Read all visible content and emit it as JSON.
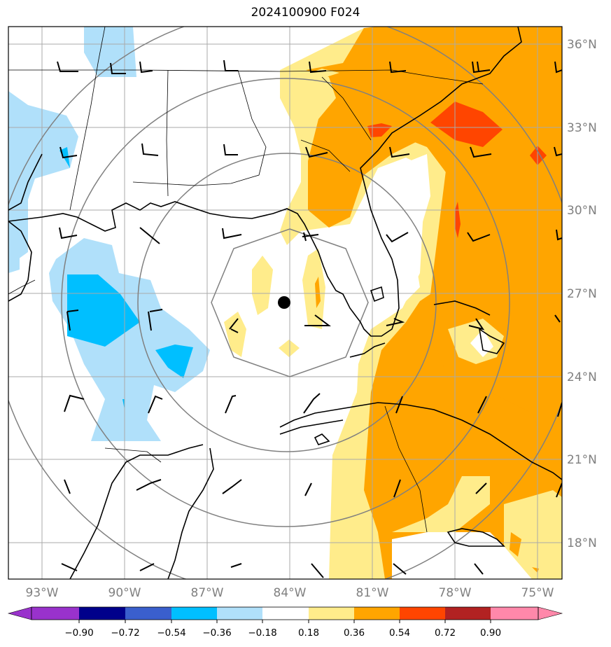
{
  "title": "2024100900 F024",
  "map": {
    "lon_labels": [
      "93°W",
      "90°W",
      "87°W",
      "84°W",
      "81°W",
      "78°W",
      "75°W"
    ],
    "lat_labels": [
      "36°N",
      "33°N",
      "30°N",
      "27°N",
      "24°N",
      "21°N",
      "18°N"
    ],
    "center_marker": "storm-center-dot"
  },
  "colorbar": {
    "ticks": [
      "−0.90",
      "−0.72",
      "−0.54",
      "−0.36",
      "−0.18",
      "0.18",
      "0.36",
      "0.54",
      "0.72",
      "0.90"
    ],
    "colors": [
      "#9932cc",
      "#00008b",
      "#3a5fcd",
      "#00bfff",
      "#b0e0fa",
      "#ffffff",
      "#ffec8b",
      "#ffa500",
      "#ff4500",
      "#b22222",
      "#ff88aa"
    ]
  },
  "fill_colors": {
    "light_blue": "#b0e0fa",
    "blue": "#00bfff",
    "yellow": "#ffec8b",
    "orange": "#ffa500",
    "red": "#ff4500"
  }
}
